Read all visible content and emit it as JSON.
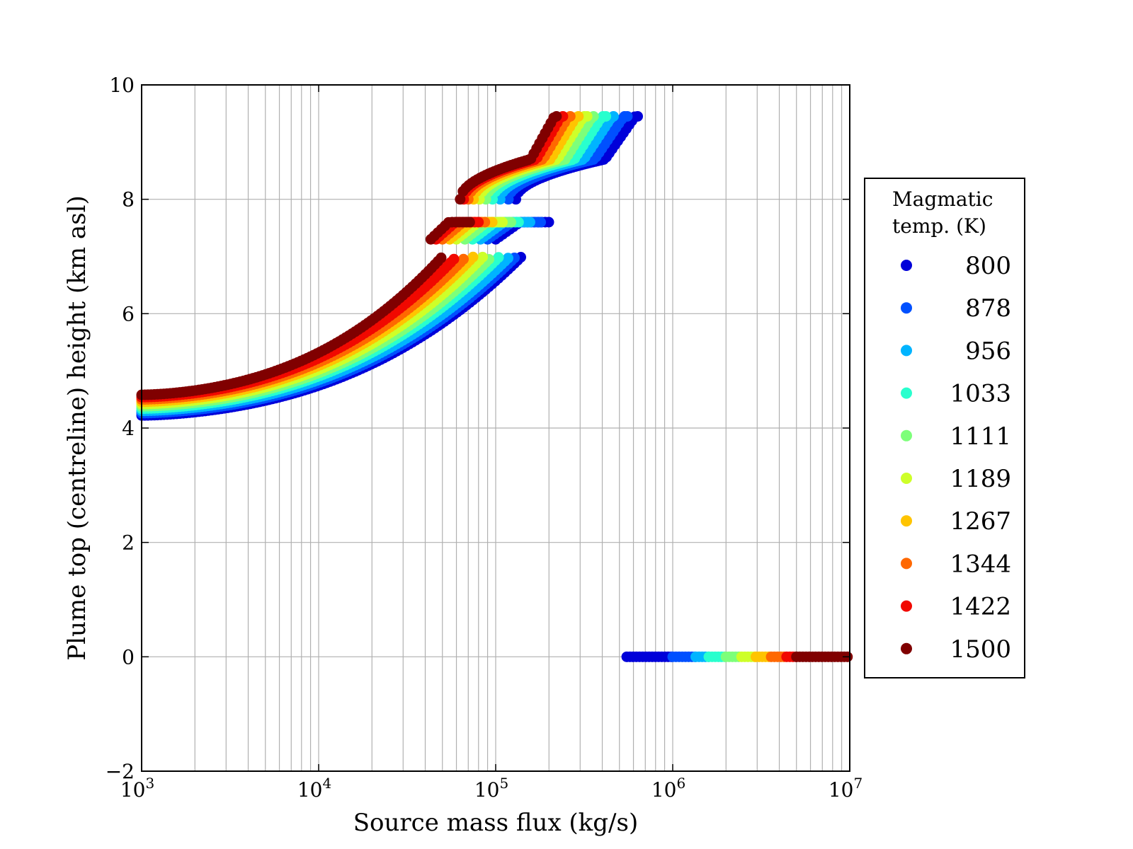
{
  "chart_data": {
    "type": "scatter",
    "title": "",
    "xlabel": "Source mass flux (kg/s)",
    "ylabel": "Plume top (centreline) height (km asl)",
    "xscale": "log",
    "xlim": [
      1000,
      10000000
    ],
    "ylim": [
      -2,
      10
    ],
    "x_tick_labels": [
      {
        "base": "10",
        "exp": "3",
        "value": 1000
      },
      {
        "base": "10",
        "exp": "4",
        "value": 10000
      },
      {
        "base": "10",
        "exp": "5",
        "value": 100000
      },
      {
        "base": "10",
        "exp": "6",
        "value": 1000000
      },
      {
        "base": "10",
        "exp": "7",
        "value": 10000000
      }
    ],
    "y_tick_labels": [
      "−2",
      "0",
      "2",
      "4",
      "6",
      "8",
      "10"
    ],
    "y_ticks": [
      -2,
      0,
      2,
      4,
      6,
      8,
      10
    ],
    "grid": true,
    "legend": {
      "title_lines": [
        "Magmatic",
        "temp. (K)"
      ],
      "placement": "right-outside"
    },
    "series": [
      {
        "name": "800",
        "color": "#0000d9"
      },
      {
        "name": "878",
        "color": "#0050ff"
      },
      {
        "name": "956",
        "color": "#00b4ff"
      },
      {
        "name": "1033",
        "color": "#29ffce"
      },
      {
        "name": "1111",
        "color": "#7dff7a"
      },
      {
        "name": "1189",
        "color": "#ceff29"
      },
      {
        "name": "1267",
        "color": "#ffc400"
      },
      {
        "name": "1344",
        "color": "#ff6800"
      },
      {
        "name": "1422",
        "color": "#f10800"
      },
      {
        "name": "1500",
        "color": "#800000"
      }
    ],
    "regimes": {
      "lower_band": {
        "x_start": 1000,
        "x_end_by_series": [
          140000,
          130000,
          120000,
          105000,
          95000,
          85000,
          75000,
          68000,
          60000,
          50000
        ],
        "y_start_by_series": [
          4.22,
          4.26,
          4.3,
          4.34,
          4.38,
          4.42,
          4.46,
          4.5,
          4.54,
          4.58
        ],
        "y_end": 7.0
      },
      "middle_band": {
        "x_start_by_series": [
          100000,
          90000,
          82000,
          74000,
          67000,
          60000,
          55000,
          50000,
          46000,
          43000
        ],
        "x_end_by_series": [
          200000,
          180000,
          160000,
          140000,
          125000,
          112000,
          100000,
          90000,
          80000,
          72000
        ],
        "y_min": 7.3,
        "y_max": 7.6
      },
      "upper_band": {
        "x_start_by_series": [
          130000,
          118000,
          106000,
          96000,
          88000,
          81000,
          75000,
          70000,
          66000,
          63000
        ],
        "x_end_by_series": [
          650000,
          560000,
          480000,
          420000,
          370000,
          330000,
          300000,
          270000,
          245000,
          225000
        ],
        "y_start": 8.0,
        "y_end": 9.45
      },
      "collapse_band": {
        "y": 0,
        "x_start_by_series": [
          550000,
          1000000,
          1350000,
          1600000,
          2000000,
          2450000,
          2950000,
          3600000,
          4400000,
          5000000
        ],
        "x_end_by_series": [
          1000000,
          1350000,
          1600000,
          2000000,
          2450000,
          2950000,
          3600000,
          4400000,
          5000000,
          10000000
        ]
      }
    }
  }
}
